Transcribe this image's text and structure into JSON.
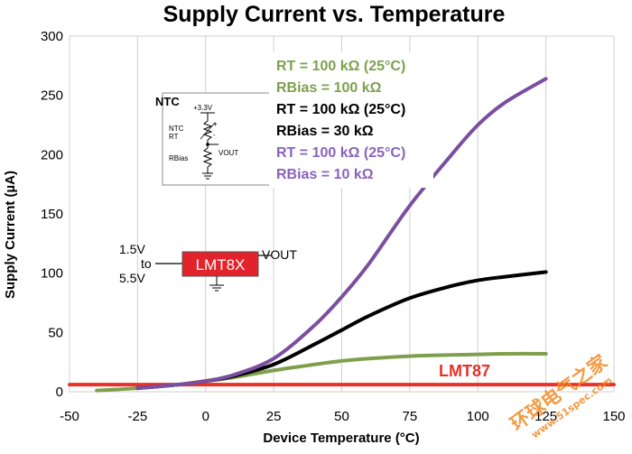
{
  "chart_data": {
    "type": "line",
    "title": "Supply Current vs. Temperature",
    "xlabel": "Device Temperature (°C)",
    "ylabel": "Supply Current (µA)",
    "xlim": [
      -50,
      150
    ],
    "ylim": [
      0,
      300
    ],
    "xticks": [
      -50,
      -25,
      0,
      25,
      50,
      75,
      100,
      125,
      150
    ],
    "yticks": [
      0,
      50,
      100,
      150,
      200,
      250,
      300
    ],
    "grid": "vertical",
    "series": [
      {
        "name": "LMT87",
        "color": "#e8312a",
        "x": [
          -50,
          150
        ],
        "y": [
          6,
          6
        ]
      },
      {
        "color": "#7ea04d",
        "x": [
          -40,
          -25,
          -10,
          0,
          10,
          25,
          40,
          50,
          60,
          75,
          90,
          100,
          110,
          125
        ],
        "y": [
          1,
          3,
          6,
          9,
          12,
          18,
          23,
          26,
          28,
          30,
          31,
          31.5,
          32,
          32
        ]
      },
      {
        "color": "#000000",
        "x": [
          -25,
          -10,
          0,
          10,
          25,
          40,
          50,
          60,
          75,
          90,
          100,
          110,
          125
        ],
        "y": [
          3,
          6,
          9,
          13,
          23,
          40,
          52,
          64,
          79,
          89,
          94,
          97,
          101
        ]
      },
      {
        "color": "#7b4fa0",
        "x": [
          -25,
          -10,
          0,
          10,
          25,
          40,
          50,
          60,
          75,
          90,
          100,
          110,
          125
        ],
        "y": [
          3,
          6,
          9,
          14,
          28,
          56,
          80,
          108,
          157,
          199,
          225,
          244,
          264
        ]
      }
    ],
    "legend": {
      "position": "top-center",
      "entries": [
        {
          "text": "RT = 100 kΩ (25°C)",
          "color": "#7ea04d"
        },
        {
          "text": "RBias = 100 kΩ",
          "color": "#7ea04d"
        },
        {
          "text": "RT = 100 kΩ (25°C)",
          "color": "#000000"
        },
        {
          "text": "RBias = 30 kΩ",
          "color": "#000000"
        },
        {
          "text": "RT = 100 kΩ (25°C)",
          "color": "#8a63b8"
        },
        {
          "text": "RBias = 10 kΩ",
          "color": "#8a63b8"
        }
      ]
    },
    "annotations": {
      "lmt87_label": "LMT87",
      "lmt87_color": "#e8312a"
    }
  },
  "ntc_diagram": {
    "title": "NTC",
    "supply": "+3.3V",
    "ntc_label_1": "NTC",
    "ntc_label_2": "RT",
    "plus": "+",
    "minus": "-",
    "rbias_label": "RBias",
    "vout_label": "VOUT"
  },
  "lmt_diagram": {
    "chip_label": "LMT8X",
    "chip_color": "#e3232b",
    "in_1": "1.5V",
    "in_2": "to",
    "in_3": "5.5V",
    "out_label": "VOUT"
  },
  "watermark": {
    "text_cn": "环球电气之家",
    "text_url": "www.51spec.com"
  }
}
